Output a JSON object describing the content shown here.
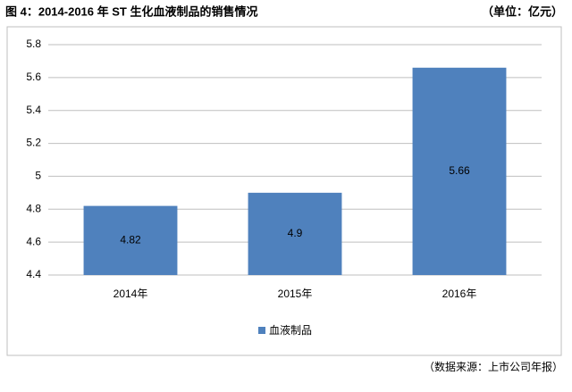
{
  "chart_data": {
    "type": "bar",
    "title": "图 4：2014-2016 年 ST 生化血液制品的销售情况",
    "unit": "（单位：亿元）",
    "source": "（数据来源：上市公司年报）",
    "categories": [
      "2014年",
      "2015年",
      "2016年"
    ],
    "series": [
      {
        "name": "血液制品",
        "color": "#4f81bd",
        "values": [
          4.82,
          4.9,
          5.66
        ]
      }
    ],
    "ylim": [
      4.4,
      5.8
    ],
    "yticks": [
      4.4,
      4.6,
      4.8,
      5,
      5.2,
      5.4,
      5.6,
      5.8
    ],
    "grid": true,
    "legend": "bottom"
  }
}
